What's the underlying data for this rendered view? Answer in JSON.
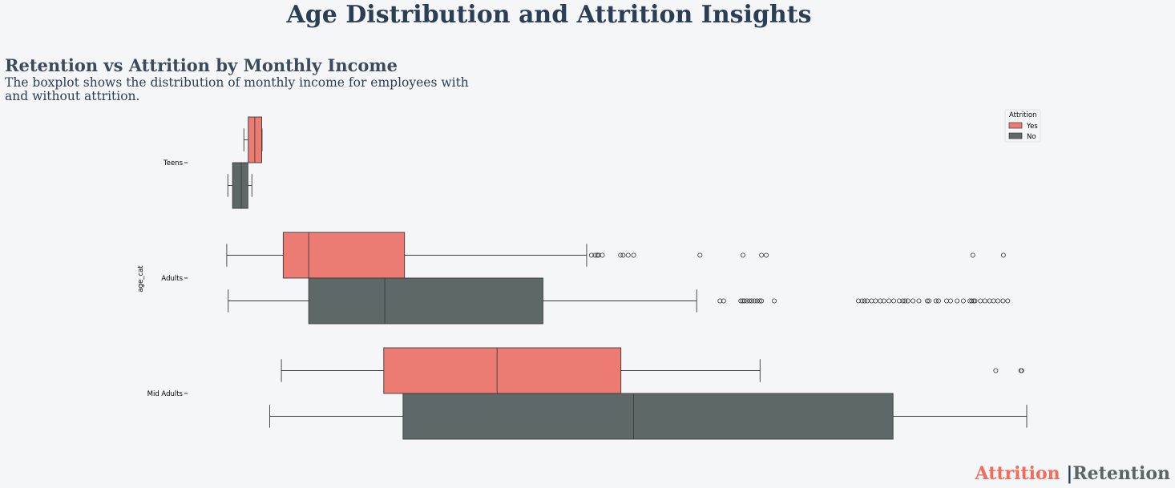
{
  "title": "Age Distribution and Attrition Insights",
  "subtitle": "Retention vs Attrition by Monthly Income",
  "description": "The boxplot shows the distribution of monthly income for employees with and without attrition.",
  "footer": {
    "attrition": "Attrition",
    "separator": "|",
    "retention": "Retention"
  },
  "colors": {
    "yes": "#ec7b73",
    "no": "#5f6869",
    "outline": "#3a3a3a",
    "title": "#2c3e55",
    "background": "#f5f6f8"
  },
  "chart_data": {
    "type": "boxplot",
    "orientation": "horizontal",
    "ylabel": "age_cat",
    "xlabel": "",
    "x_axis_visible": false,
    "xlim": [
      0,
      22000
    ],
    "categories": [
      "Teens",
      "Adults",
      "Mid Adults"
    ],
    "legend": {
      "title": "Attrition",
      "entries": [
        "Yes",
        "No"
      ],
      "position": "top-right"
    },
    "series": [
      {
        "name": "Yes",
        "boxes": [
          {
            "category": "Teens",
            "whisker_low": 490,
            "q1": 610,
            "median": 790,
            "q3": 980,
            "whisker_high": 990,
            "outliers": []
          },
          {
            "category": "Adults",
            "whisker_low": 20,
            "q1": 1570,
            "median": 2270,
            "q3": 4900,
            "whisker_high": 9900,
            "outliers": [
              10030,
              10130,
              10190,
              10230,
              10330,
              10830,
              10900,
              11040,
              11190,
              13010,
              14190,
              14700,
              14830,
              20500,
              21340
            ]
          },
          {
            "category": "Mid Adults",
            "whisker_low": 1520,
            "q1": 4330,
            "median": 7440,
            "q3": 10840,
            "whisker_high": 14660,
            "outliers": [
              21130,
              21820,
              21840
            ]
          }
        ]
      },
      {
        "name": "No",
        "boxes": [
          {
            "category": "Teens",
            "whisker_low": 50,
            "q1": 180,
            "median": 420,
            "q3": 600,
            "whisker_high": 710,
            "outliers": []
          },
          {
            "category": "Adults",
            "whisker_low": 60,
            "q1": 2270,
            "median": 4360,
            "q3": 8700,
            "whisker_high": 12920,
            "outliers": [
              13560,
              13660,
              14130,
              14180,
              14230,
              14300,
              14370,
              14430,
              14510,
              14580,
              14650,
              14700,
              15050,
              17360,
              17460,
              17530,
              17600,
              17720,
              17830,
              17960,
              18060,
              18200,
              18330,
              18480,
              18580,
              18640,
              18720,
              18860,
              19020,
              19250,
              19300,
              19490,
              19560,
              19780,
              19890,
              20070,
              20240,
              20420,
              20470,
              20530,
              20560,
              20710,
              20830,
              20960,
              21070,
              21190,
              21330,
              21460
            ]
          },
          {
            "category": "Mid Adults",
            "whisker_low": 1200,
            "q1": 4860,
            "median": 11190,
            "q3": 18310,
            "whisker_high": 21980,
            "outliers": []
          }
        ]
      }
    ]
  }
}
